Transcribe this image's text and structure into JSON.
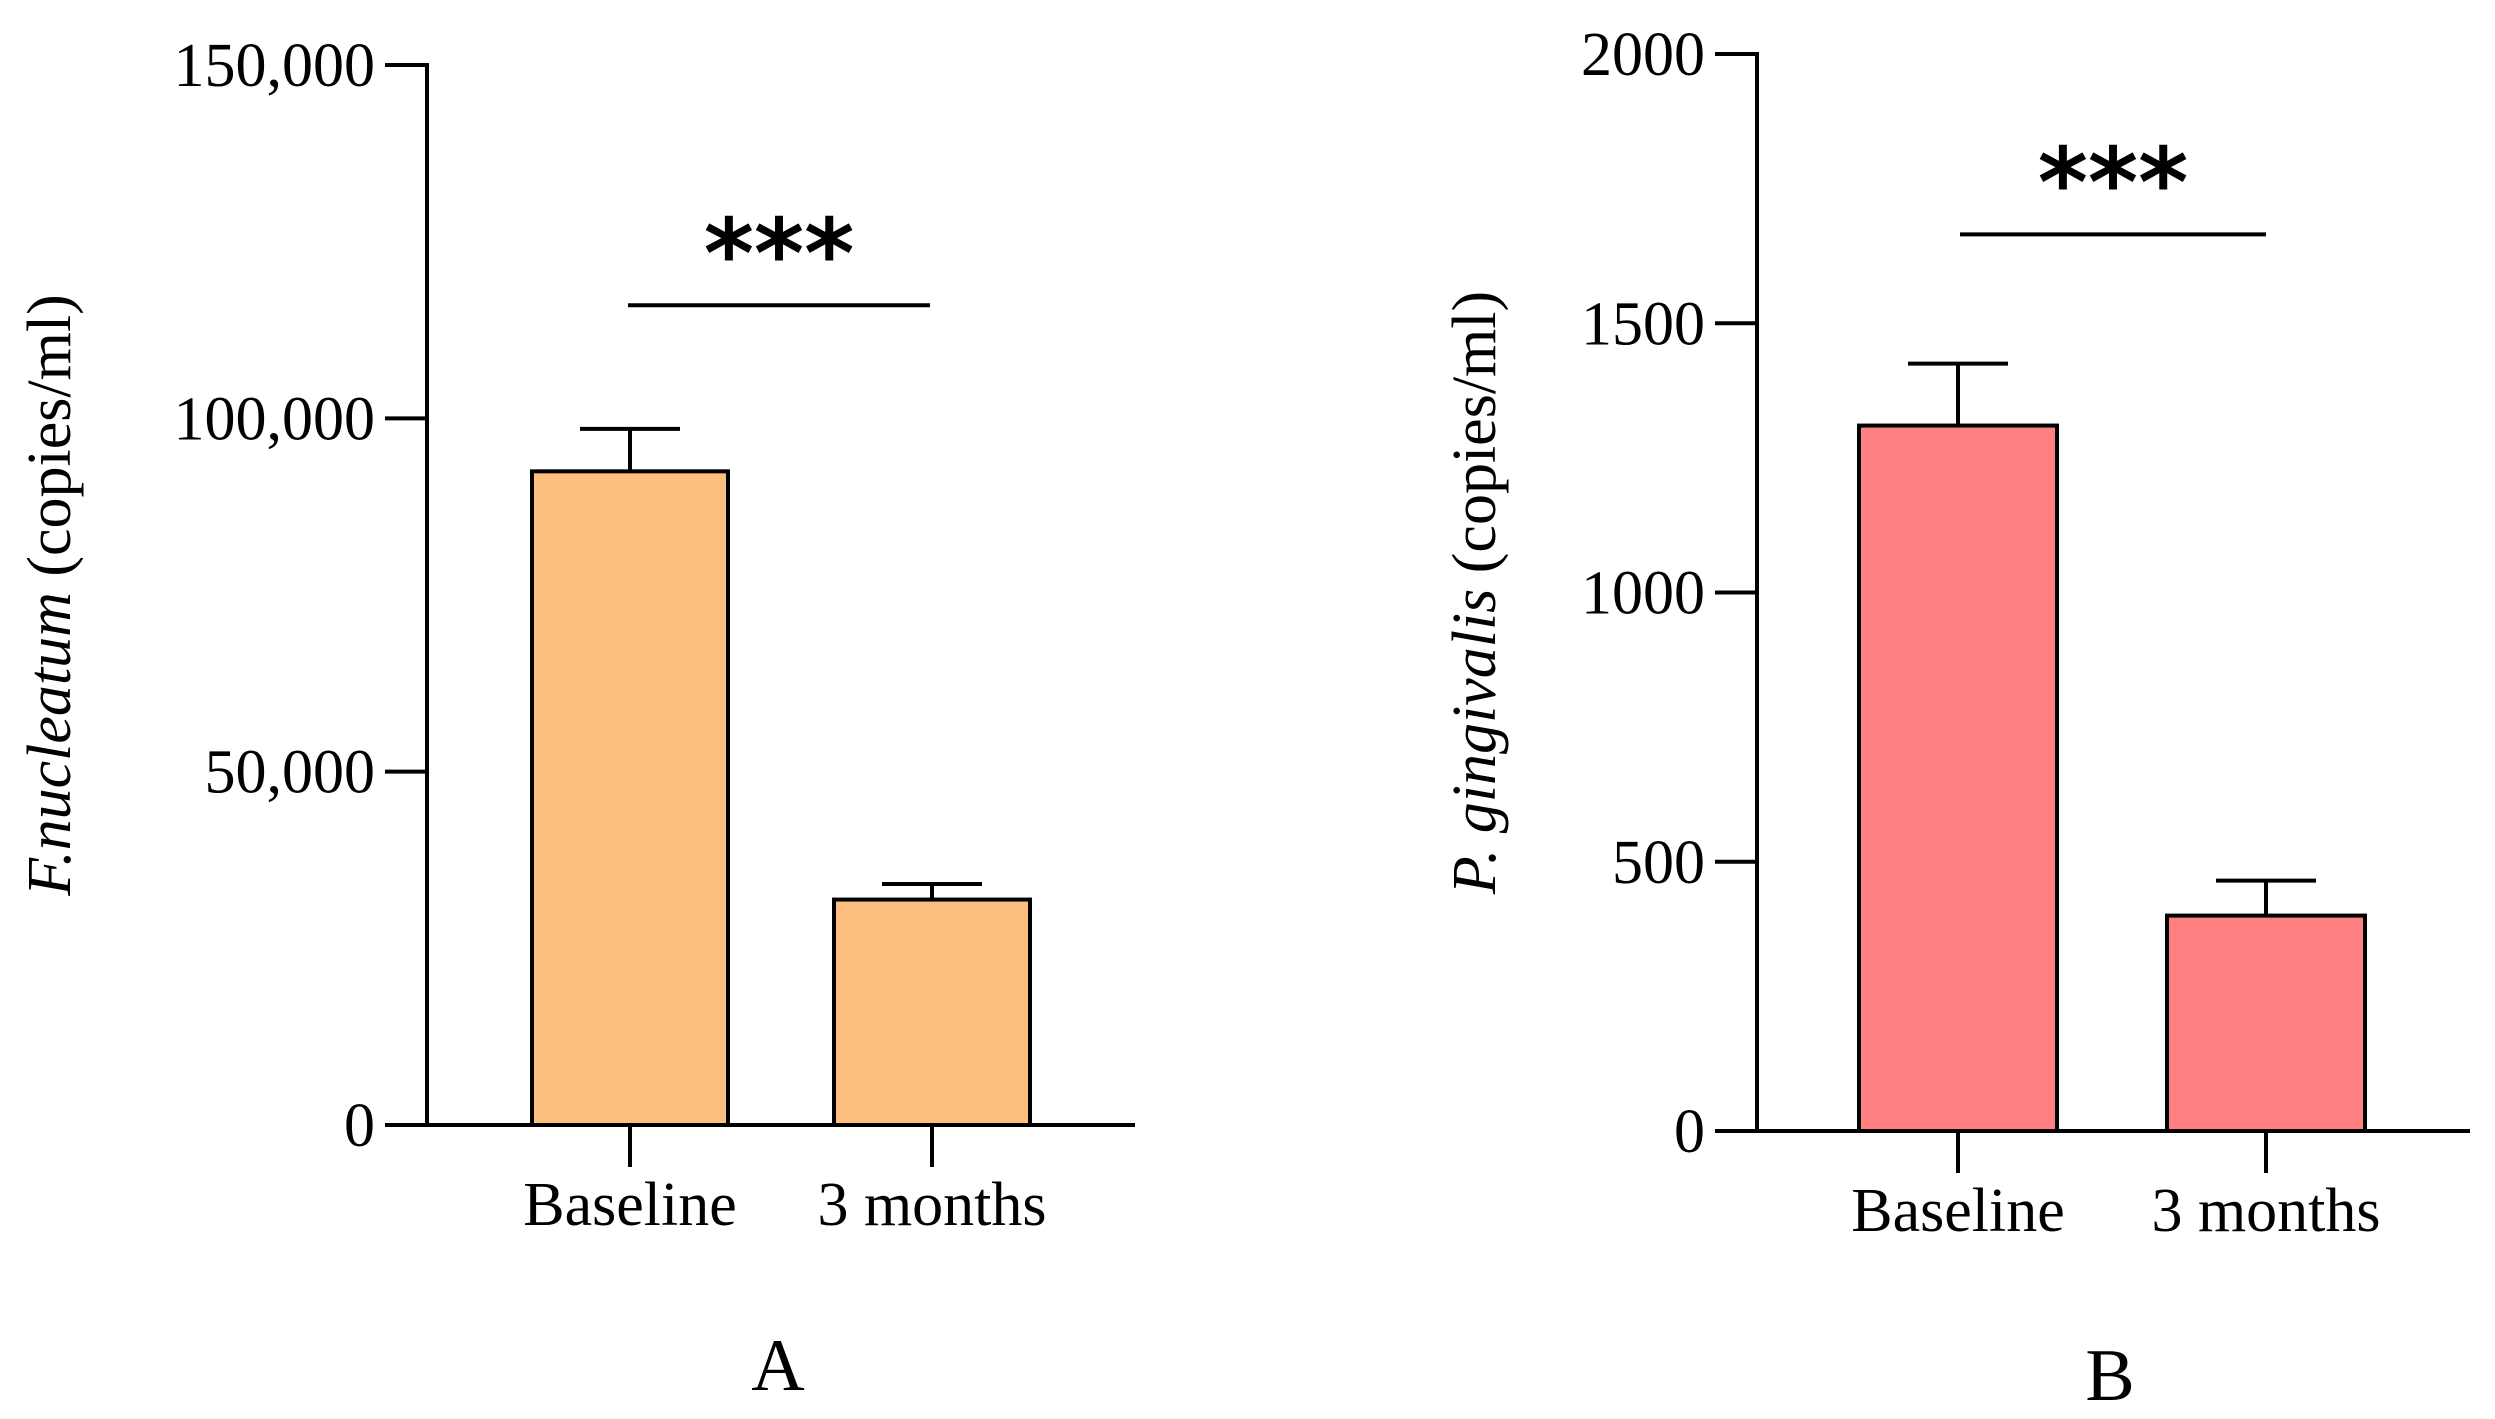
{
  "chart_data": [
    {
      "type": "bar",
      "panel_label": "A",
      "categories": [
        "Baseline",
        "3 months"
      ],
      "values": [
        92500,
        31900
      ],
      "errors": [
        6000,
        2200
      ],
      "ylabel_italic": "F.nucleatum",
      "ylabel_rest": " (copies/ml)",
      "ylim": [
        0,
        150000
      ],
      "yticks": [
        0,
        50000,
        100000,
        150000
      ],
      "ytick_labels": [
        "0",
        "50,000",
        "100,000",
        "150,000"
      ],
      "bar_color": "#FDBF80",
      "significance": "***",
      "significance_y": 116000,
      "grid": false
    },
    {
      "type": "bar",
      "panel_label": "B",
      "categories": [
        "Baseline",
        "3 months"
      ],
      "values": [
        1310,
        400
      ],
      "errors": [
        115,
        65
      ],
      "ylabel_italic": "P. gingivalis",
      "ylabel_rest": " (copies/ml)",
      "ylim": [
        0,
        2000
      ],
      "yticks": [
        0,
        500,
        1000,
        1500,
        2000
      ],
      "ytick_labels": [
        "0",
        "500",
        "1000",
        "1500",
        "2000"
      ],
      "bar_color": "#FF8080",
      "significance": "***",
      "significance_y": 1665,
      "grid": false
    }
  ]
}
